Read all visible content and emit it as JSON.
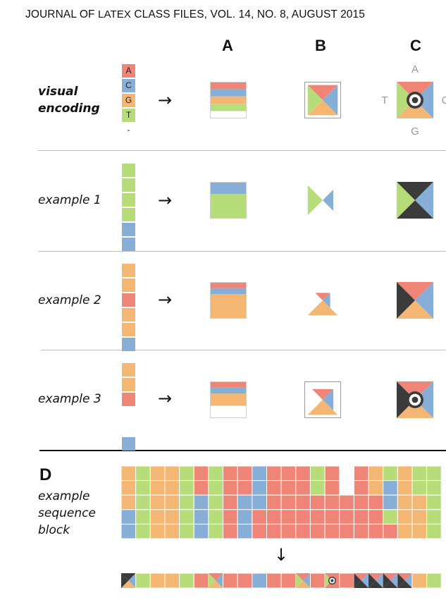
{
  "header": {
    "prefix": "JOURNAL OF ",
    "latex_logo": "LATEX",
    "suffix": " CLASS FILES, VOL. 14, NO. 8, AUGUST 2015"
  },
  "columns": [
    "A",
    "B",
    "C"
  ],
  "colors": {
    "A": "#ee8577",
    "C": "#87aed6",
    "G": "#f3b673",
    "T": "#b6dd7a",
    "gap": "#3b3b3b",
    "grid_line": "#ffffff"
  },
  "rows": [
    {
      "label_lines": [
        "visual",
        "encoding"
      ],
      "bold": true,
      "arrow": "→"
    },
    {
      "label_lines": [
        "example 1"
      ],
      "bold": false,
      "arrow": "→"
    },
    {
      "label_lines": [
        "example 2"
      ],
      "bold": false,
      "arrow": "→"
    },
    {
      "label_lines": [
        "example 3"
      ],
      "bold": false,
      "arrow": "→"
    }
  ],
  "legend_sequence": [
    "A",
    "C",
    "G",
    "T",
    "-"
  ],
  "base_labels": {
    "top": "A",
    "left": "T",
    "right": "C",
    "bottom": "G"
  },
  "examples": [
    [
      "T",
      "T",
      "T",
      "T",
      "C",
      "C"
    ],
    [
      "G",
      "G",
      "A",
      "G",
      "G",
      "C"
    ],
    [
      "G",
      "G",
      "A",
      "-",
      "-",
      "C"
    ]
  ],
  "section_d": {
    "label": "D",
    "label_lines": [
      "example",
      "sequence",
      "block"
    ],
    "arrow": "↓",
    "block": [
      "GTGGTATAACAAATA-AGTGTT",
      "GTGGTATAACAAATA-AGCGTT",
      "GTGGTCTACCAAAAAAAACGGT",
      "CTGGTCTACAAAAAAAAATGGT",
      "CTGGTCTACAAAAAAAAAAGGT"
    ],
    "summary": [
      "C3",
      "T",
      "G",
      "G",
      "T",
      "A",
      "C1",
      "A",
      "A",
      "C",
      "A",
      "A",
      "C1",
      "A",
      "C4",
      "A",
      "C5",
      "C5",
      "C5",
      "C5",
      "G",
      "T"
    ]
  }
}
